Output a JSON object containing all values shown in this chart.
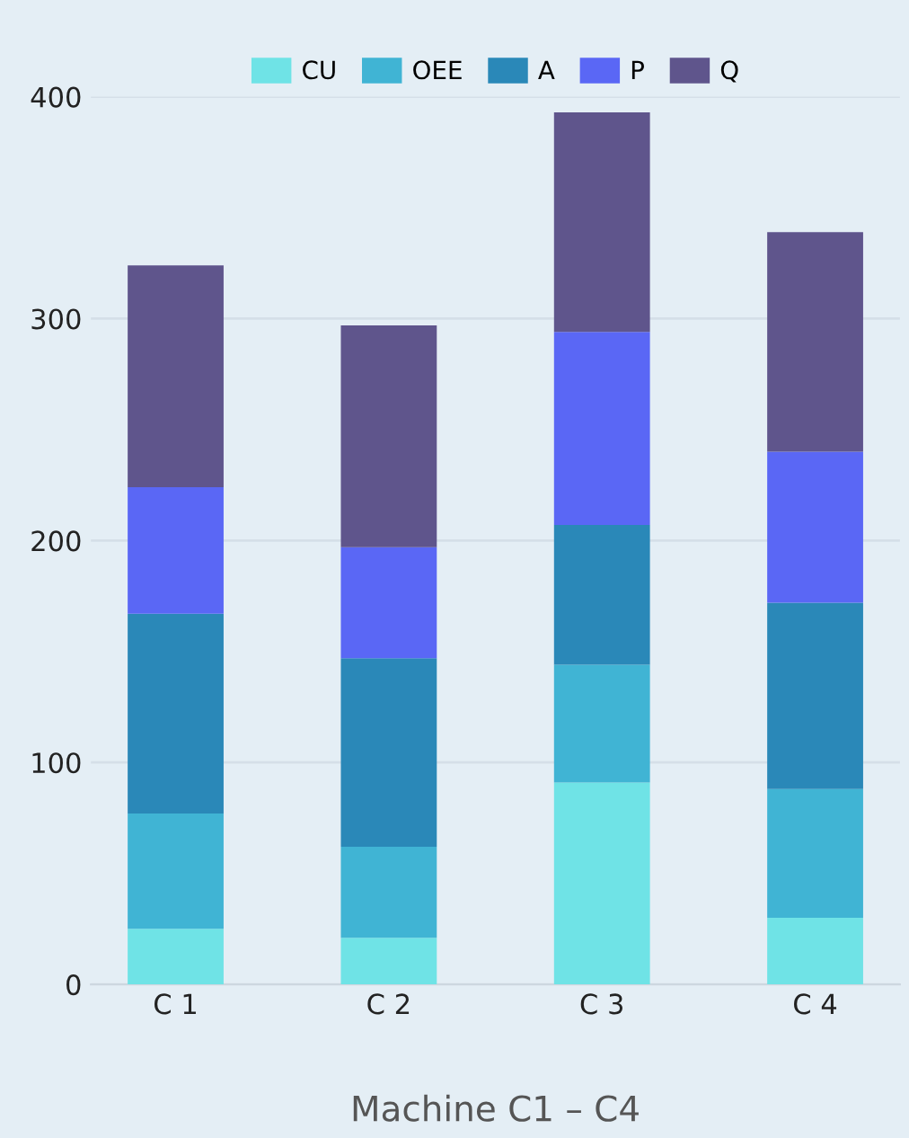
{
  "chart_data": {
    "type": "bar",
    "stacked": true,
    "xlabel": "Machine C1 – C4",
    "categories": [
      "C 1",
      "C 2",
      "C 3",
      "C 4"
    ],
    "series": [
      {
        "name": "CU",
        "color": "#6fe3e6",
        "values": [
          25,
          21,
          91,
          30
        ]
      },
      {
        "name": "OEE",
        "color": "#40b4d4",
        "values": [
          52,
          41,
          53,
          58
        ]
      },
      {
        "name": "A",
        "color": "#2a88b8",
        "values": [
          90,
          85,
          63,
          84
        ]
      },
      {
        "name": "P",
        "color": "#5a67f5",
        "values": [
          57,
          50,
          87,
          68
        ]
      },
      {
        "name": "Q",
        "color": "#5f558c",
        "values": [
          100,
          100,
          99,
          99
        ]
      }
    ],
    "ylim": [
      0,
      400
    ],
    "yticks": [
      0,
      100,
      200,
      300,
      400
    ],
    "grid": "y",
    "legend": "top"
  }
}
